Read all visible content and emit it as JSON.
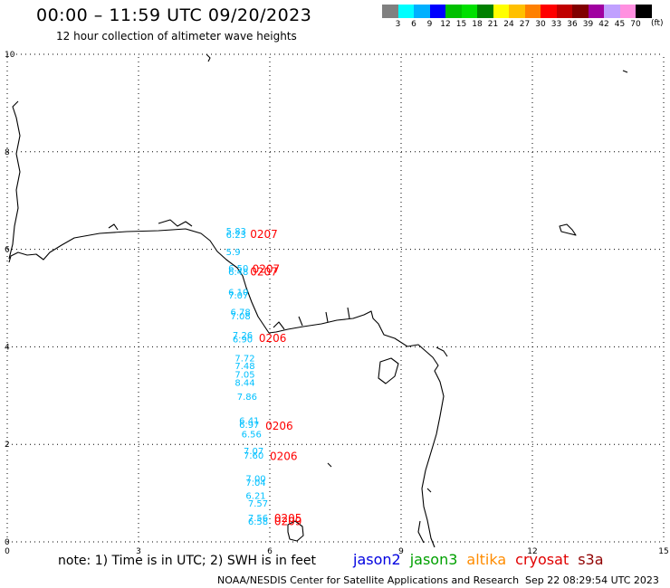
{
  "header": {
    "title": "00:00 – 11:59 UTC 09/20/2023",
    "subtitle": "12 hour collection of altimeter wave heights"
  },
  "legend": {
    "colors": [
      "#808080",
      "#00ffff",
      "#00b0ff",
      "#0000ff",
      "#00c000",
      "#00e000",
      "#008000",
      "#ffff00",
      "#ffc000",
      "#ff8000",
      "#ff0000",
      "#c00000",
      "#800000",
      "#a000a0",
      "#c0a0ff",
      "#ff90e0",
      "#000000"
    ],
    "ticks": [
      "3",
      "6",
      "9",
      "12",
      "15",
      "18",
      "21",
      "24",
      "27",
      "30",
      "33",
      "36",
      "39",
      "42",
      "45",
      "70"
    ],
    "unit": "(ft)"
  },
  "map": {
    "x_ticks": [
      "0",
      "3",
      "6",
      "9",
      "12",
      "15"
    ],
    "y_ticks": [
      "0",
      "2",
      "4",
      "6",
      "8",
      "10"
    ],
    "x_range": [
      0,
      15
    ],
    "y_range": [
      0,
      10
    ],
    "grid": true
  },
  "wave_heights": [
    {
      "x": 5.0,
      "y": 6.31,
      "text": "5.83",
      "color": "#00c0ff"
    },
    {
      "x": 5.0,
      "y": 6.23,
      "text": "6.23",
      "color": "#00c0ff"
    },
    {
      "x": 5.0,
      "y": 5.88,
      "text": "5.9",
      "color": "#00c0ff"
    },
    {
      "x": 5.05,
      "y": 5.55,
      "text": "6.50",
      "color": "#00c0ff"
    },
    {
      "x": 5.05,
      "y": 5.47,
      "text": "6.48",
      "color": "#00c0ff"
    },
    {
      "x": 5.05,
      "y": 5.06,
      "text": "6.10",
      "color": "#00c0ff"
    },
    {
      "x": 5.05,
      "y": 4.99,
      "text": "7.07",
      "color": "#00c0ff"
    },
    {
      "x": 5.1,
      "y": 4.65,
      "text": "6.78",
      "color": "#00c0ff"
    },
    {
      "x": 5.1,
      "y": 4.56,
      "text": "7.08",
      "color": "#00c0ff"
    },
    {
      "x": 5.15,
      "y": 4.17,
      "text": "7.26",
      "color": "#00c0ff"
    },
    {
      "x": 5.15,
      "y": 4.09,
      "text": "6.90",
      "color": "#00c0ff"
    },
    {
      "x": 5.2,
      "y": 3.7,
      "text": "7.72",
      "color": "#00c0ff"
    },
    {
      "x": 5.2,
      "y": 3.54,
      "text": "7.48",
      "color": "#00c0ff"
    },
    {
      "x": 5.2,
      "y": 3.37,
      "text": "7.05",
      "color": "#00c0ff"
    },
    {
      "x": 5.2,
      "y": 3.2,
      "text": "8.44",
      "color": "#00c0ff"
    },
    {
      "x": 5.25,
      "y": 2.91,
      "text": "7.86",
      "color": "#00c0ff"
    },
    {
      "x": 5.3,
      "y": 2.42,
      "text": "6.41",
      "color": "#00c0ff"
    },
    {
      "x": 5.3,
      "y": 2.34,
      "text": "6.97",
      "color": "#00c0ff"
    },
    {
      "x": 5.35,
      "y": 2.14,
      "text": "6.56",
      "color": "#00c0ff"
    },
    {
      "x": 5.4,
      "y": 1.8,
      "text": "7.07",
      "color": "#00c0ff"
    },
    {
      "x": 5.4,
      "y": 1.71,
      "text": "7.60",
      "color": "#00c0ff"
    },
    {
      "x": 5.45,
      "y": 1.23,
      "text": "7.00",
      "color": "#00c0ff"
    },
    {
      "x": 5.45,
      "y": 1.15,
      "text": "7.04",
      "color": "#00c0ff"
    },
    {
      "x": 5.45,
      "y": 0.88,
      "text": "6.21",
      "color": "#00c0ff"
    },
    {
      "x": 5.5,
      "y": 0.72,
      "text": "7.57",
      "color": "#00c0ff"
    },
    {
      "x": 5.5,
      "y": 0.43,
      "text": "7.56",
      "color": "#00c0ff"
    },
    {
      "x": 5.5,
      "y": 0.35,
      "text": "6.58",
      "color": "#00c0ff"
    }
  ],
  "pass_labels": [
    {
      "x": 5.55,
      "y": 6.23,
      "text": "0207",
      "color": "#ff0000"
    },
    {
      "x": 5.6,
      "y": 5.52,
      "text": "0207",
      "color": "#ff0000"
    },
    {
      "x": 5.55,
      "y": 5.46,
      "text": "0207",
      "color": "#ff0000"
    },
    {
      "x": 5.75,
      "y": 4.1,
      "text": "0206",
      "color": "#ff0000"
    },
    {
      "x": 5.9,
      "y": 2.3,
      "text": "0206",
      "color": "#ff0000"
    },
    {
      "x": 6.0,
      "y": 1.68,
      "text": "0206",
      "color": "#ff0000"
    },
    {
      "x": 6.1,
      "y": 0.41,
      "text": "0205",
      "color": "#ff0000"
    },
    {
      "x": 6.1,
      "y": 0.34,
      "text": "0209",
      "color": "#ff0000"
    }
  ],
  "footer": {
    "note": "note:  1) Time is in UTC;  2) SWH is in feet",
    "satellites": [
      {
        "name": "jason2",
        "color": "#0000e0"
      },
      {
        "name": "jason3",
        "color": "#00a000"
      },
      {
        "name": "altika",
        "color": "#ff8c00"
      },
      {
        "name": "cryosat",
        "color": "#e00000"
      },
      {
        "name": "s3a",
        "color": "#900000"
      }
    ],
    "credit": "NOAA/NESDIS Center for Satellite Applications and Research",
    "timestamp": "Sep 22 08:29:54 UTC 2023"
  }
}
